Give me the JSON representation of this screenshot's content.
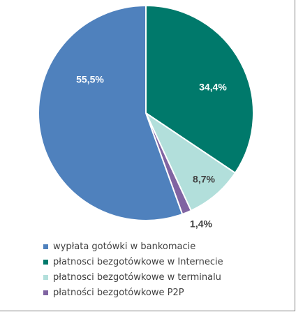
{
  "chart_data": {
    "type": "pie",
    "series": [
      {
        "name": "wypłata gotówki w bankomacie",
        "value": 55.5,
        "label": "55,5%",
        "color": "#4F81BD",
        "label_color": "#ffffff"
      },
      {
        "name": "płatnosci bezgotówkowe w Internecie",
        "value": 34.4,
        "label": "34,4%",
        "color": "#00796B",
        "label_color": "#ffffff"
      },
      {
        "name": "płatnosci bezgotówkowe w terminalu",
        "value": 8.7,
        "label": "8,7%",
        "color": "#B2DFDB",
        "label_color": "#404040"
      },
      {
        "name": "płatności bezgotówkowe P2P",
        "value": 1.4,
        "label": "1,4%",
        "color": "#8064A2",
        "label_color": "#404040"
      }
    ],
    "legend_position": "bottom"
  }
}
